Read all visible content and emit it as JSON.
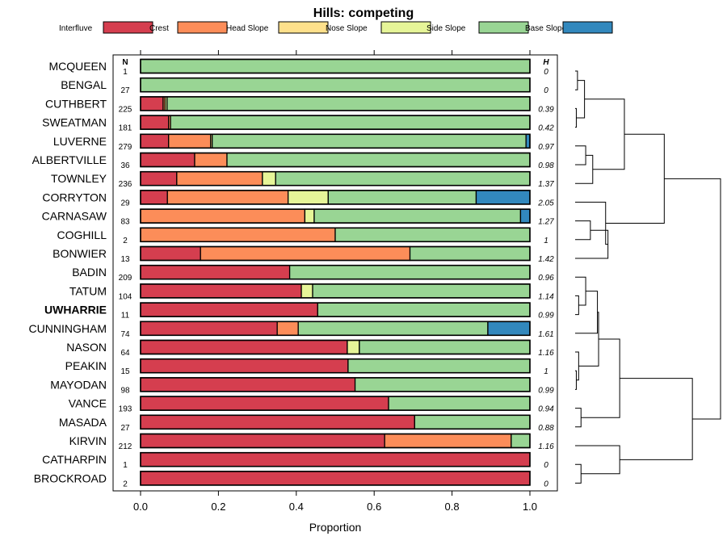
{
  "chart_data": {
    "type": "bar",
    "stacked": true,
    "orientation": "horizontal",
    "title": "Hills: competing",
    "xlabel": "Proportion",
    "xlim": [
      0,
      1
    ],
    "xticks": [
      "0.0",
      "0.2",
      "0.4",
      "0.6",
      "0.8",
      "1.0"
    ],
    "legend_position": "top",
    "n_header": "N",
    "h_header": "H",
    "highlight": "UWHARRIE",
    "classes": [
      {
        "name": "Interfluve",
        "color": "#D53E4F"
      },
      {
        "name": "Crest",
        "color": "#FC8D59"
      },
      {
        "name": "Head Slope",
        "color": "#FEE08B"
      },
      {
        "name": "Nose Slope",
        "color": "#E6F598"
      },
      {
        "name": "Side Slope",
        "color": "#99D594"
      },
      {
        "name": "Base Slope",
        "color": "#3288BD"
      }
    ],
    "series_order": [
      "Interfluve",
      "Crest",
      "Head Slope",
      "Nose Slope",
      "Side Slope",
      "Base Slope"
    ],
    "rows": [
      {
        "name": "MCQUEEN",
        "n": "1",
        "h": "0",
        "values": [
          0,
          0,
          0,
          0,
          1.0,
          0
        ]
      },
      {
        "name": "BENGAL",
        "n": "27",
        "h": "0",
        "values": [
          0,
          0,
          0,
          0,
          1.0,
          0
        ]
      },
      {
        "name": "CUTHBERT",
        "n": "225",
        "h": "0.39",
        "values": [
          0.058,
          0.005,
          0,
          0.005,
          0.932,
          0
        ]
      },
      {
        "name": "SWEATMAN",
        "n": "181",
        "h": "0.42",
        "values": [
          0.072,
          0.005,
          0,
          0,
          0.923,
          0
        ]
      },
      {
        "name": "LUVERNE",
        "n": "279",
        "h": "0.97",
        "values": [
          0.072,
          0.108,
          0.004,
          0,
          0.806,
          0.01
        ]
      },
      {
        "name": "ALBERTVILLE",
        "n": "36",
        "h": "0.98",
        "values": [
          0.139,
          0.083,
          0,
          0,
          0.778,
          0
        ]
      },
      {
        "name": "TOWNLEY",
        "n": "236",
        "h": "1.37",
        "values": [
          0.093,
          0.22,
          0,
          0.034,
          0.653,
          0
        ]
      },
      {
        "name": "CORRYTON",
        "n": "29",
        "h": "2.05",
        "values": [
          0.069,
          0.31,
          0,
          0.103,
          0.38,
          0.138
        ]
      },
      {
        "name": "CARNASAW",
        "n": "83",
        "h": "1.27",
        "values": [
          0,
          0.422,
          0,
          0.024,
          0.53,
          0.024
        ]
      },
      {
        "name": "COGHILL",
        "n": "2",
        "h": "1",
        "values": [
          0,
          0.5,
          0,
          0,
          0.5,
          0
        ]
      },
      {
        "name": "BONWIER",
        "n": "13",
        "h": "1.42",
        "values": [
          0.154,
          0.538,
          0,
          0,
          0.308,
          0
        ]
      },
      {
        "name": "BADIN",
        "n": "209",
        "h": "0.96",
        "values": [
          0.383,
          0,
          0,
          0,
          0.617,
          0
        ]
      },
      {
        "name": "TATUM",
        "n": "104",
        "h": "1.14",
        "values": [
          0.413,
          0,
          0,
          0.029,
          0.558,
          0
        ]
      },
      {
        "name": "UWHARRIE",
        "n": "11",
        "h": "0.99",
        "values": [
          0.455,
          0,
          0,
          0,
          0.545,
          0
        ]
      },
      {
        "name": "CUNNINGHAM",
        "n": "74",
        "h": "1.61",
        "values": [
          0.351,
          0.054,
          0,
          0,
          0.487,
          0.108
        ]
      },
      {
        "name": "NASON",
        "n": "64",
        "h": "1.16",
        "values": [
          0.531,
          0,
          0,
          0.031,
          0.438,
          0
        ]
      },
      {
        "name": "PEAKIN",
        "n": "15",
        "h": "1",
        "values": [
          0.533,
          0,
          0,
          0,
          0.467,
          0
        ]
      },
      {
        "name": "MAYODAN",
        "n": "98",
        "h": "0.99",
        "values": [
          0.551,
          0,
          0,
          0,
          0.449,
          0
        ]
      },
      {
        "name": "VANCE",
        "n": "193",
        "h": "0.94",
        "values": [
          0.637,
          0,
          0,
          0,
          0.363,
          0
        ]
      },
      {
        "name": "MASADA",
        "n": "27",
        "h": "0.88",
        "values": [
          0.704,
          0,
          0,
          0,
          0.296,
          0
        ]
      },
      {
        "name": "KIRVIN",
        "n": "212",
        "h": "1.16",
        "values": [
          0.627,
          0.325,
          0,
          0,
          0.048,
          0
        ]
      },
      {
        "name": "CATHARPIN",
        "n": "1",
        "h": "0",
        "values": [
          1.0,
          0,
          0,
          0,
          0,
          0
        ]
      },
      {
        "name": "BROCKROAD",
        "n": "2",
        "h": "0",
        "values": [
          1.0,
          0,
          0,
          0,
          0,
          0
        ]
      }
    ],
    "dendrogram": {
      "description": "hierarchical clustering of soil series by landform proportions",
      "merges": [
        {
          "id": "c1",
          "left": "MCQUEEN",
          "right": "BENGAL",
          "height": 0.02
        },
        {
          "id": "c2",
          "left": "CUTHBERT",
          "right": "SWEATMAN",
          "height": 0.01
        },
        {
          "id": "c3",
          "left": "c1",
          "right": "c2",
          "height": 0.08
        },
        {
          "id": "c4",
          "left": "LUVERNE",
          "right": "ALBERTVILLE",
          "height": 0.09
        },
        {
          "id": "c5",
          "left": "c4",
          "right": "TOWNLEY",
          "height": 0.15
        },
        {
          "id": "c6",
          "left": "c3",
          "right": "c5",
          "height": 0.42
        },
        {
          "id": "c7",
          "left": "CARNASAW",
          "right": "COGHILL",
          "height": 0.13
        },
        {
          "id": "c8",
          "left": "c7",
          "right": "BONWIER",
          "height": 0.28
        },
        {
          "id": "c9",
          "left": "CORRYTON",
          "right": "c8",
          "height": 0.26
        },
        {
          "id": "c10",
          "left": "c6",
          "right": "c9",
          "height": 0.76
        },
        {
          "id": "c11",
          "left": "TATUM",
          "right": "UWHARRIE",
          "height": 0.03
        },
        {
          "id": "c12",
          "left": "BADIN",
          "right": "c11",
          "height": 0.09
        },
        {
          "id": "c13",
          "left": "c12",
          "right": "CUNNINGHAM",
          "height": 0.19
        },
        {
          "id": "c14",
          "left": "PEAKIN",
          "right": "MAYODAN",
          "height": 0.01
        },
        {
          "id": "c15",
          "left": "NASON",
          "right": "c14",
          "height": 0.03
        },
        {
          "id": "c16",
          "left": "c13",
          "right": "c15",
          "height": 0.2
        },
        {
          "id": "c17",
          "left": "VANCE",
          "right": "MASADA",
          "height": 0.05
        },
        {
          "id": "c18",
          "left": "c16",
          "right": "c17",
          "height": 0.38
        },
        {
          "id": "c19",
          "left": "CATHARPIN",
          "right": "BROCKROAD",
          "height": 0.05
        },
        {
          "id": "c20",
          "left": "KIRVIN",
          "right": "c19",
          "height": 0.38
        },
        {
          "id": "c21",
          "left": "c18",
          "right": "c20",
          "height": 1.0
        },
        {
          "id": "root",
          "left": "c10",
          "right": "c21",
          "height": 1.24
        }
      ]
    }
  }
}
